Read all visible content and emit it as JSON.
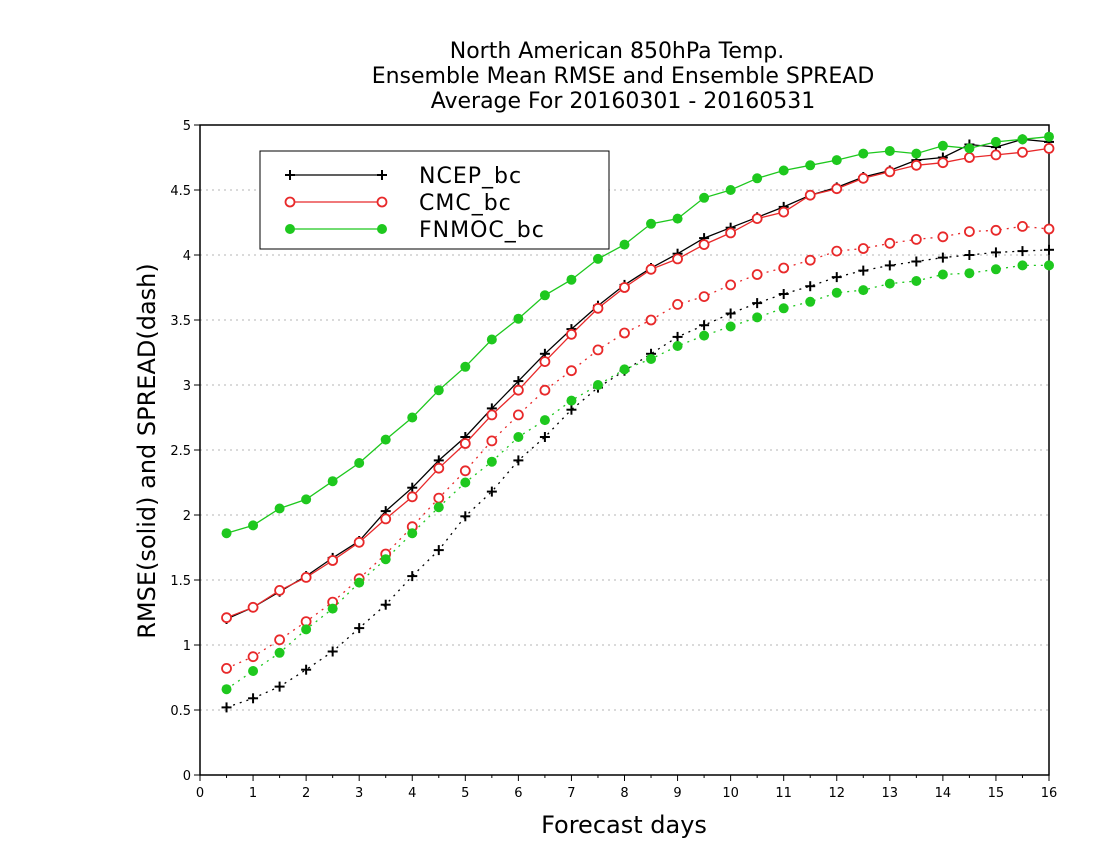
{
  "chart_data": {
    "type": "line",
    "title_lines": [
      "North American 850hPa Temp.",
      "Ensemble Mean RMSE and Ensemble SPREAD",
      "Average For 20160301 - 20160531"
    ],
    "xlabel": "Forecast days",
    "ylabel": "RMSE(solid) and SPREAD(dash)",
    "xlim": [
      0,
      16
    ],
    "ylim": [
      0,
      5
    ],
    "x_ticks": [
      "0",
      "1",
      "2",
      "3",
      "4",
      "5",
      "6",
      "7",
      "8",
      "9",
      "10",
      "11",
      "12",
      "13",
      "14",
      "15",
      "16"
    ],
    "y_ticks": [
      "0",
      "0.5",
      "1",
      "1.5",
      "2",
      "2.5",
      "3",
      "3.5",
      "4",
      "4.5",
      "5"
    ],
    "grid": "horizontal dotted",
    "legend_position": "top-left",
    "x": [
      0.5,
      1,
      1.5,
      2,
      2.5,
      3,
      3.5,
      4,
      4.5,
      5,
      5.5,
      6,
      6.5,
      7,
      7.5,
      8,
      8.5,
      9,
      9.5,
      10,
      10.5,
      11,
      11.5,
      12,
      12.5,
      13,
      13.5,
      14,
      14.5,
      15,
      15.5,
      16
    ],
    "series": [
      {
        "name": "NCEP_bc",
        "color": "#000000",
        "marker": "plus",
        "rmse": [
          1.2,
          1.29,
          1.41,
          1.53,
          1.67,
          1.8,
          2.03,
          2.21,
          2.42,
          2.6,
          2.82,
          3.03,
          3.24,
          3.43,
          3.61,
          3.77,
          3.9,
          4.01,
          4.13,
          4.21,
          4.29,
          4.37,
          4.46,
          4.52,
          4.6,
          4.65,
          4.73,
          4.75,
          4.85,
          4.83,
          4.89,
          4.87
        ],
        "spread": [
          0.52,
          0.59,
          0.68,
          0.81,
          0.95,
          1.13,
          1.31,
          1.53,
          1.73,
          1.99,
          2.18,
          2.42,
          2.6,
          2.81,
          2.98,
          3.11,
          3.24,
          3.37,
          3.46,
          3.55,
          3.63,
          3.7,
          3.76,
          3.83,
          3.88,
          3.92,
          3.95,
          3.98,
          4.0,
          4.02,
          4.03,
          4.04
        ]
      },
      {
        "name": "CMC_bc",
        "color": "#e8292a",
        "marker": "open-circle",
        "rmse": [
          1.21,
          1.29,
          1.42,
          1.52,
          1.65,
          1.79,
          1.97,
          2.14,
          2.36,
          2.55,
          2.77,
          2.96,
          3.18,
          3.39,
          3.59,
          3.75,
          3.89,
          3.97,
          4.08,
          4.17,
          4.28,
          4.33,
          4.46,
          4.51,
          4.59,
          4.64,
          4.69,
          4.71,
          4.75,
          4.77,
          4.79,
          4.82
        ],
        "spread": [
          0.82,
          0.91,
          1.04,
          1.18,
          1.33,
          1.51,
          1.7,
          1.91,
          2.13,
          2.34,
          2.57,
          2.77,
          2.96,
          3.11,
          3.27,
          3.4,
          3.5,
          3.62,
          3.68,
          3.77,
          3.85,
          3.9,
          3.96,
          4.03,
          4.05,
          4.09,
          4.12,
          4.14,
          4.18,
          4.19,
          4.22,
          4.2
        ]
      },
      {
        "name": "FNMOC_bc",
        "color": "#1ec81e",
        "marker": "filled-circle",
        "rmse": [
          1.86,
          1.92,
          2.05,
          2.12,
          2.26,
          2.4,
          2.58,
          2.75,
          2.96,
          3.14,
          3.35,
          3.51,
          3.69,
          3.81,
          3.97,
          4.08,
          4.24,
          4.28,
          4.44,
          4.5,
          4.59,
          4.65,
          4.69,
          4.73,
          4.78,
          4.8,
          4.78,
          4.84,
          4.82,
          4.87,
          4.89,
          4.91
        ],
        "spread": [
          0.66,
          0.8,
          0.94,
          1.12,
          1.28,
          1.48,
          1.66,
          1.86,
          2.06,
          2.25,
          2.41,
          2.6,
          2.73,
          2.88,
          3.0,
          3.12,
          3.2,
          3.3,
          3.38,
          3.45,
          3.52,
          3.59,
          3.64,
          3.71,
          3.73,
          3.78,
          3.8,
          3.85,
          3.86,
          3.89,
          3.92,
          3.92
        ]
      }
    ]
  }
}
